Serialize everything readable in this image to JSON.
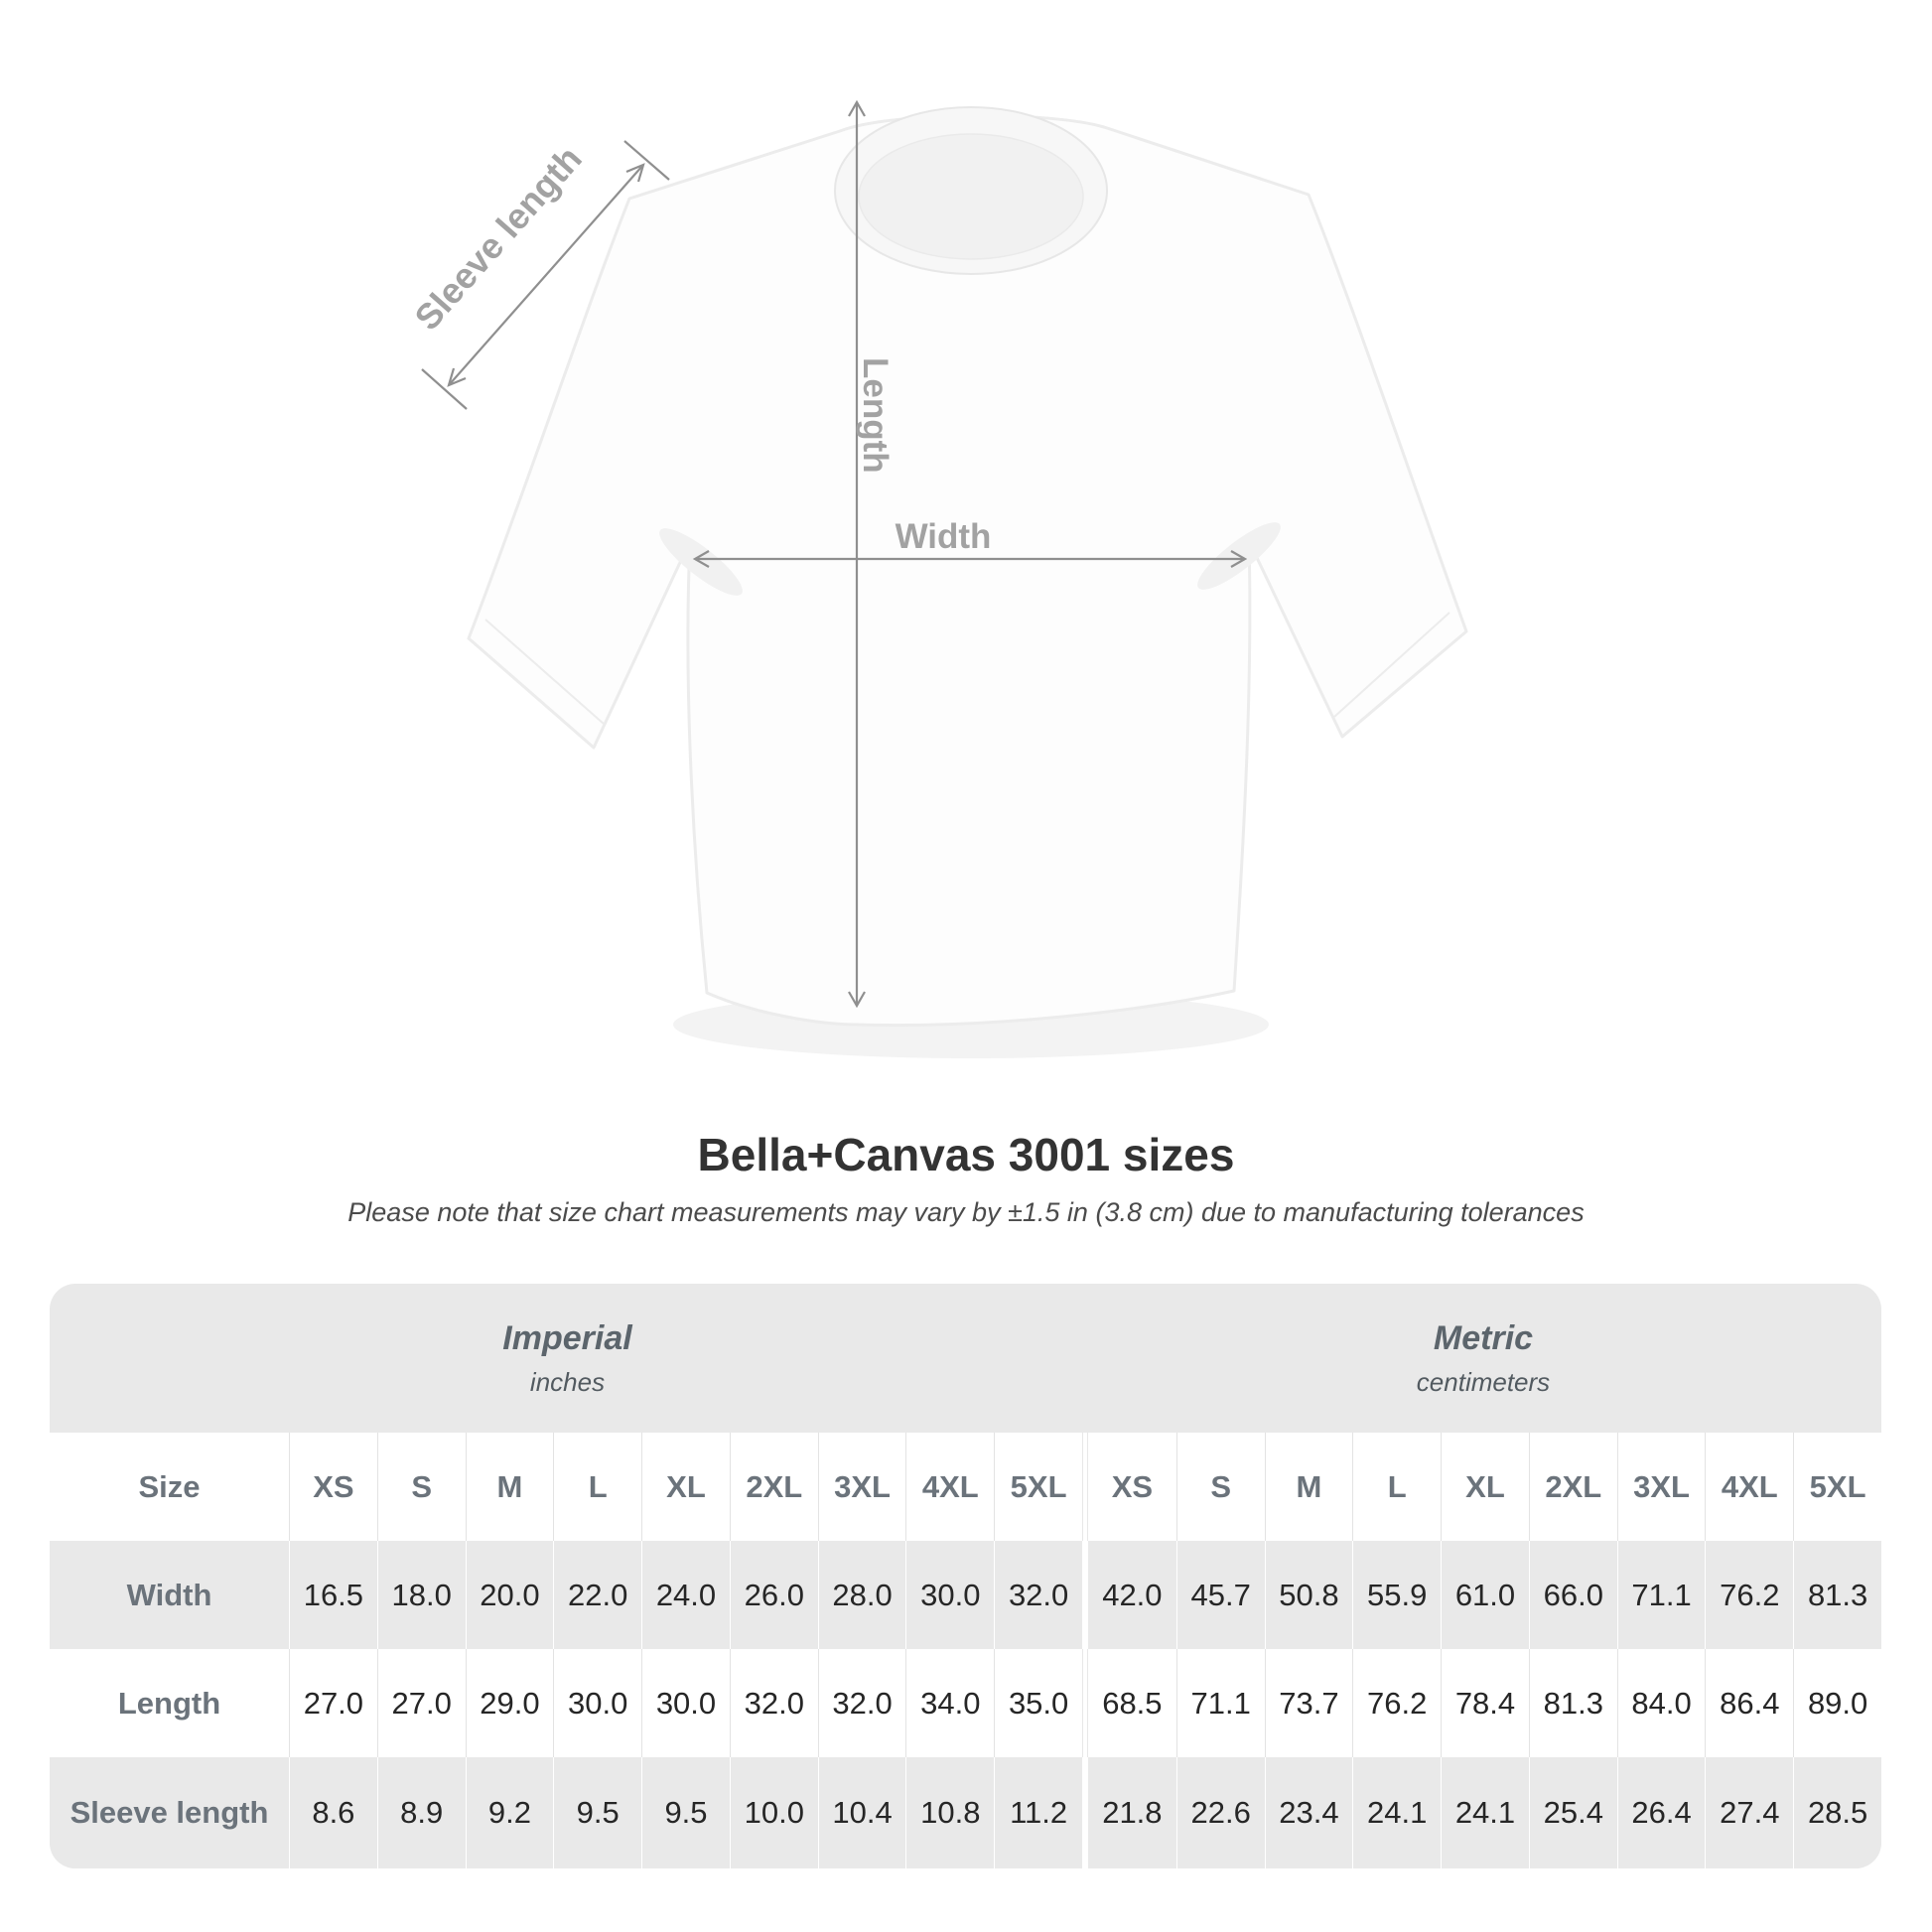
{
  "title": "Bella+Canvas 3001 sizes",
  "subtitle": "Please note that size chart measurements may vary by ±1.5 in (3.8 cm) due to manufacturing tolerances",
  "diagram": {
    "sleeve_length_label": "Sleeve length",
    "length_label": "Length",
    "width_label": "Width"
  },
  "table": {
    "size_label": "Size",
    "sizes": [
      "XS",
      "S",
      "M",
      "L",
      "XL",
      "2XL",
      "3XL",
      "4XL",
      "5XL"
    ],
    "groups": [
      {
        "name": "Imperial",
        "unit": "inches"
      },
      {
        "name": "Metric",
        "unit": "centimeters"
      }
    ],
    "rows": [
      {
        "label": "Width",
        "imperial": [
          "16.5",
          "18.0",
          "20.0",
          "22.0",
          "24.0",
          "26.0",
          "28.0",
          "30.0",
          "32.0"
        ],
        "metric": [
          "42.0",
          "45.7",
          "50.8",
          "55.9",
          "61.0",
          "66.0",
          "71.1",
          "76.2",
          "81.3"
        ]
      },
      {
        "label": "Length",
        "imperial": [
          "27.0",
          "27.0",
          "29.0",
          "30.0",
          "30.0",
          "32.0",
          "32.0",
          "34.0",
          "35.0"
        ],
        "metric": [
          "68.5",
          "71.1",
          "73.7",
          "76.2",
          "78.4",
          "81.3",
          "84.0",
          "86.4",
          "89.0"
        ]
      },
      {
        "label": "Sleeve length",
        "imperial": [
          "8.6",
          "8.9",
          "9.2",
          "9.5",
          "9.5",
          "10.0",
          "10.4",
          "10.8",
          "11.2"
        ],
        "metric": [
          "21.8",
          "22.6",
          "23.4",
          "24.1",
          "24.1",
          "25.4",
          "26.4",
          "27.4",
          "28.5"
        ]
      }
    ]
  },
  "colors": {
    "table_gray": "#e9e9e9",
    "header_text_gray": "#6b737b",
    "value_text": "#262626",
    "diagram_label_gray": "#a2a2a2",
    "arrow_gray": "#8f8f8f"
  },
  "chart_data": {
    "type": "table",
    "title": "Bella+Canvas 3001 sizes",
    "note": "Please note that size chart measurements may vary by ±1.5 in (3.8 cm) due to manufacturing tolerances",
    "columns": [
      "Size",
      "XS",
      "S",
      "M",
      "L",
      "XL",
      "2XL",
      "3XL",
      "4XL",
      "5XL"
    ],
    "unit_groups": {
      "Imperial": "inches",
      "Metric": "centimeters"
    },
    "imperial_rows": [
      {
        "measure": "Width",
        "values": [
          16.5,
          18.0,
          20.0,
          22.0,
          24.0,
          26.0,
          28.0,
          30.0,
          32.0
        ]
      },
      {
        "measure": "Length",
        "values": [
          27.0,
          27.0,
          29.0,
          30.0,
          30.0,
          32.0,
          32.0,
          34.0,
          35.0
        ]
      },
      {
        "measure": "Sleeve length",
        "values": [
          8.6,
          8.9,
          9.2,
          9.5,
          9.5,
          10.0,
          10.4,
          10.8,
          11.2
        ]
      }
    ],
    "metric_rows": [
      {
        "measure": "Width",
        "values": [
          42.0,
          45.7,
          50.8,
          55.9,
          61.0,
          66.0,
          71.1,
          76.2,
          81.3
        ]
      },
      {
        "measure": "Length",
        "values": [
          68.5,
          71.1,
          73.7,
          76.2,
          78.4,
          81.3,
          84.0,
          86.4,
          89.0
        ]
      },
      {
        "measure": "Sleeve length",
        "values": [
          21.8,
          22.6,
          23.4,
          24.1,
          24.1,
          25.4,
          26.4,
          27.4,
          28.5
        ]
      }
    ]
  }
}
